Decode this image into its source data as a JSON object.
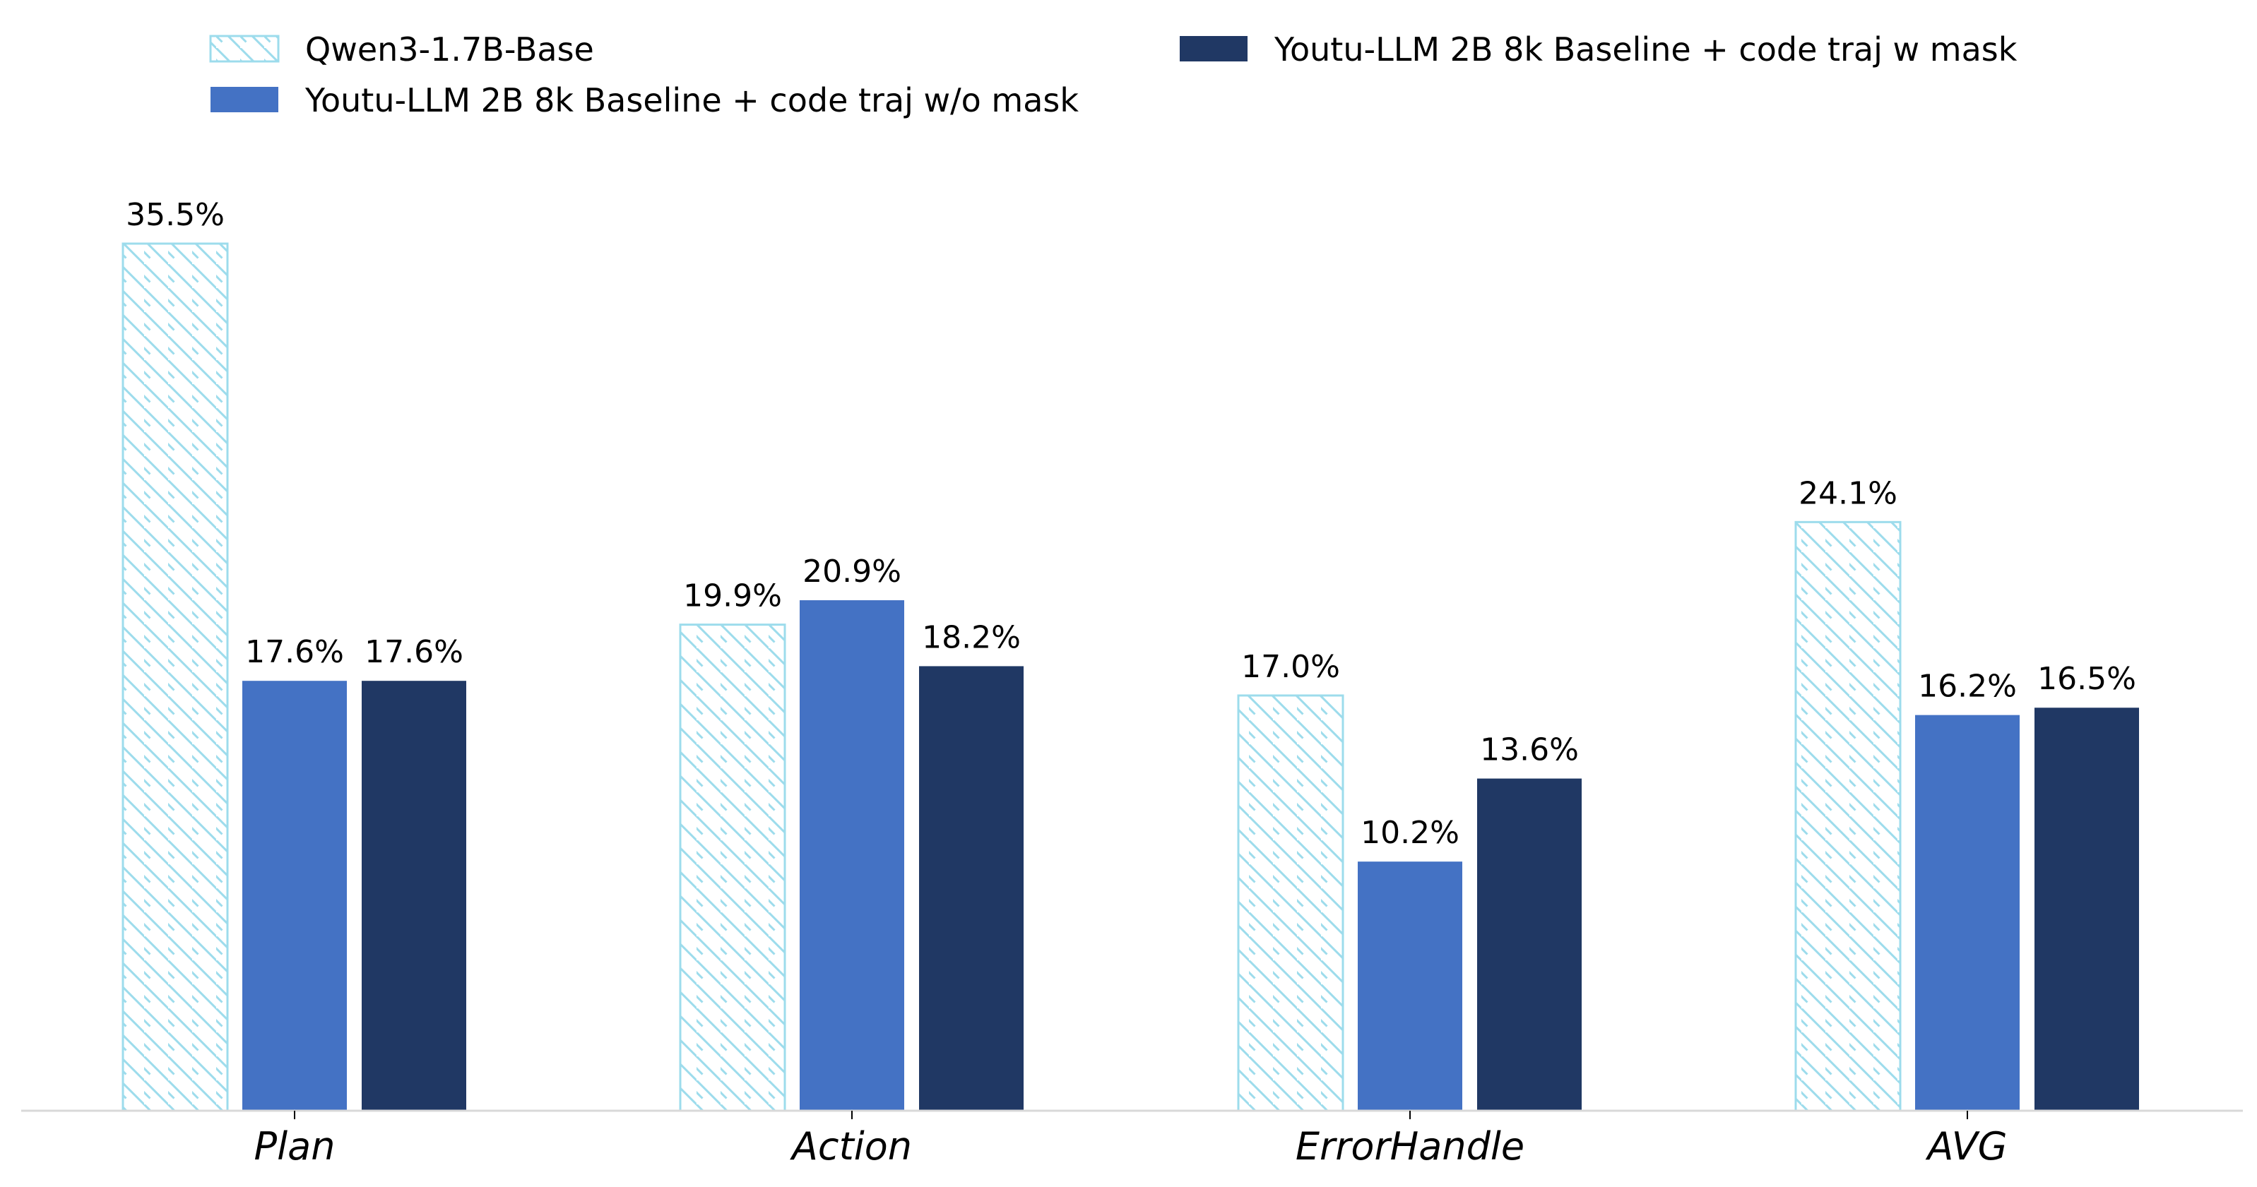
{
  "chart_data": {
    "type": "bar",
    "categories": [
      "Plan",
      "Action",
      "ErrorHandle",
      "AVG"
    ],
    "series": [
      {
        "name": "Qwen3-1.7B-Base",
        "values": [
          35.5,
          19.9,
          17.0,
          24.1
        ],
        "style": "hatched",
        "color": "#9ddcec"
      },
      {
        "name": "Youtu-LLM 2B 8k Baseline + code traj w/o mask",
        "values": [
          17.6,
          20.9,
          10.2,
          16.2
        ],
        "style": "solid",
        "color": "#4472c4"
      },
      {
        "name": "Youtu-LLM 2B 8k Baseline + code traj w mask",
        "values": [
          17.6,
          18.2,
          13.6,
          16.5
        ],
        "style": "solid",
        "color": "#203864"
      }
    ],
    "value_suffix": "%",
    "title": "",
    "xlabel": "",
    "ylabel": "",
    "ylim": [
      0,
      37.3
    ],
    "grid": false,
    "legend": "top, two columns",
    "colors": {
      "axis": "#d9d9d9"
    }
  }
}
